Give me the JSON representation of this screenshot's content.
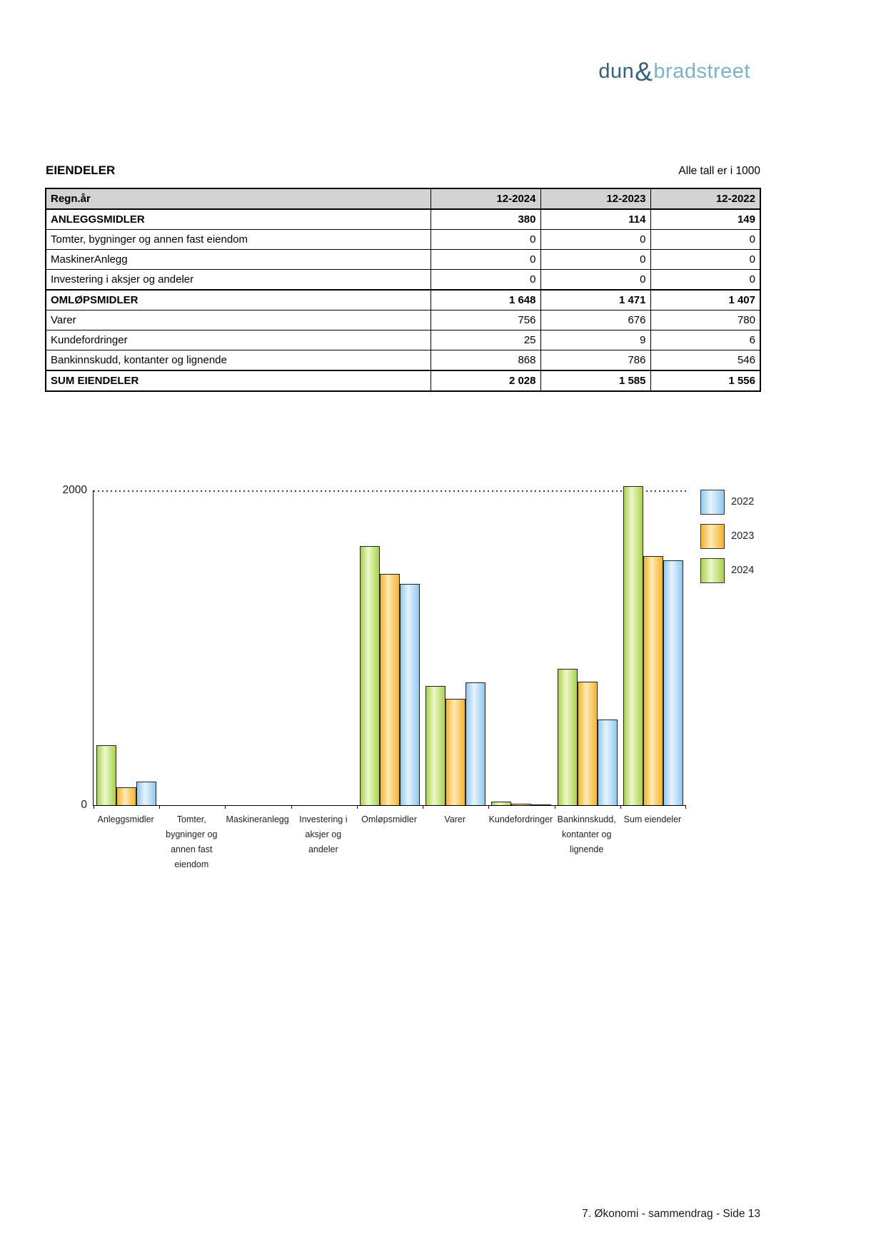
{
  "logo": {
    "dun": "dun",
    "amp": "&",
    "bradstreet": "bradstreet"
  },
  "header": {
    "title": "EIENDELER",
    "note": "Alle tall er i 1000"
  },
  "table": {
    "columns": [
      "Regn.år",
      "12-2024",
      "12-2023",
      "12-2022"
    ],
    "rows": [
      {
        "label": "ANLEGGSMIDLER",
        "values": [
          "380",
          "114",
          "149"
        ],
        "bold": true
      },
      {
        "label": "Tomter, bygninger og annen fast eiendom",
        "values": [
          "0",
          "0",
          "0"
        ],
        "bold": false
      },
      {
        "label": "MaskinerAnlegg",
        "values": [
          "0",
          "0",
          "0"
        ],
        "bold": false
      },
      {
        "label": "Investering i aksjer og andeler",
        "values": [
          "0",
          "0",
          "0"
        ],
        "bold": false
      },
      {
        "label": "OMLØPSMIDLER",
        "values": [
          "1 648",
          "1 471",
          "1 407"
        ],
        "bold": true
      },
      {
        "label": "Varer",
        "values": [
          "756",
          "676",
          "780"
        ],
        "bold": false
      },
      {
        "label": "Kundefordringer",
        "values": [
          "25",
          "9",
          "6"
        ],
        "bold": false
      },
      {
        "label": "Bankinnskudd, kontanter og lignende",
        "values": [
          "868",
          "786",
          "546"
        ],
        "bold": false
      },
      {
        "label": "SUM EIENDELER",
        "values": [
          "2 028",
          "1 585",
          "1 556"
        ],
        "bold": true
      }
    ]
  },
  "chart_data": {
    "type": "bar",
    "title": "",
    "categories": [
      [
        "Anleggsmidler"
      ],
      [
        "Tomter,",
        "bygninger og",
        "annen fast",
        "eiendom"
      ],
      [
        "Maskineranlegg"
      ],
      [
        "Investering i",
        "aksjer og",
        "andeler"
      ],
      [
        "Omløpsmidler"
      ],
      [
        "Varer"
      ],
      [
        "Kundefordringer"
      ],
      [
        "Bankinnskudd,",
        "kontanter og",
        "lignende"
      ],
      [
        "Sum eiendeler"
      ]
    ],
    "series": [
      {
        "name": "2024",
        "values": [
          380,
          0,
          0,
          0,
          1648,
          756,
          25,
          868,
          2028
        ]
      },
      {
        "name": "2023",
        "values": [
          114,
          0,
          0,
          0,
          1471,
          676,
          9,
          786,
          1585
        ]
      },
      {
        "name": "2022",
        "values": [
          149,
          0,
          0,
          0,
          1407,
          780,
          6,
          546,
          1556
        ]
      }
    ],
    "ylim": [
      0,
      2000
    ],
    "yticks": [
      {
        "value": 2000,
        "label": "2000"
      },
      {
        "value": 0,
        "label": "0"
      }
    ],
    "legend": [
      "2022",
      "2023",
      "2024"
    ],
    "legend_position": "right",
    "grid": "dotted top line at 2000",
    "colors": {
      "2024": {
        "edge": "#a9d348",
        "light": "#edf7cf"
      },
      "2023": {
        "edge": "#f6b32a",
        "light": "#fdeab7"
      },
      "2022": {
        "edge": "#90c8ee",
        "light": "#e7f4fd"
      }
    }
  },
  "footer": {
    "text": "7. Økonomi - sammendrag - Side 13"
  }
}
